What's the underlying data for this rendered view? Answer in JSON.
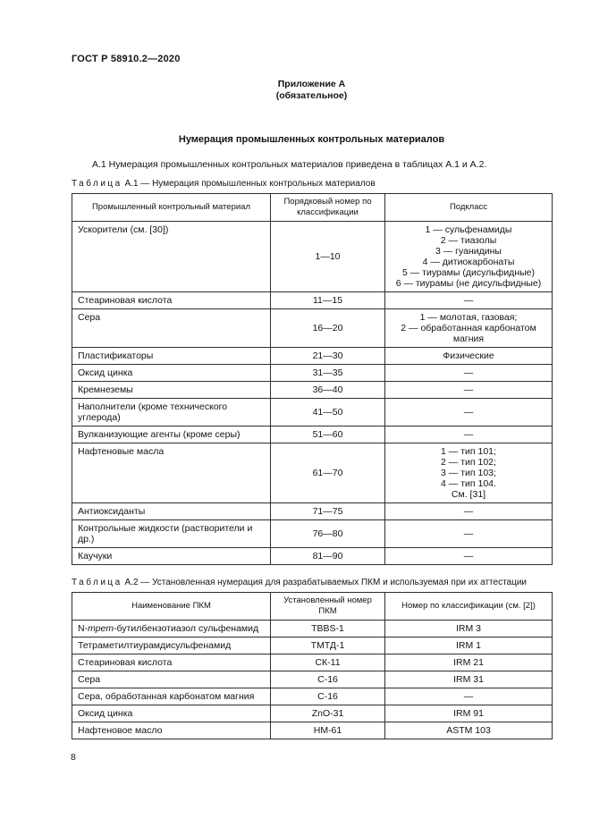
{
  "page": {
    "doc_header": "ГОСТ Р 58910.2—2020",
    "annex_line1": "Приложение А",
    "annex_line2": "(обязательное)",
    "title": "Нумерация промышленных контрольных материалов",
    "paragraph": "А.1 Нумерация промышленных контрольных материалов приведена в таблицах А.1 и А.2.",
    "page_number": "8"
  },
  "table_a1": {
    "caption": {
      "word": "Таблица",
      "num": "А.1",
      "separator": "—",
      "text": "Нумерация промышленных контрольных материалов"
    },
    "headers": [
      "Промышленный контрольный материал",
      "Порядковый номер по классификации",
      "Подкласс"
    ],
    "rows": [
      {
        "col1": "Ускорители (см. [30])",
        "col2": "1—10",
        "col3": [
          "1 — сульфенамиды",
          "2 — тиазолы",
          "3 — гуанидины",
          "4 — дитиокарбонаты",
          "5 — тиурамы (дисульфидные)",
          "6 — тиурамы (не дисульфидные)"
        ]
      },
      {
        "col1": "Стеариновая кислота",
        "col2": "11—15",
        "col3": "—"
      },
      {
        "col1": "Сера",
        "col2": "16—20",
        "col3": [
          "1 — молотая, газовая;",
          "2 — обработанная карбонатом",
          "магния"
        ]
      },
      {
        "col1": "Пластификаторы",
        "col2": "21—30",
        "col3": "Физические"
      },
      {
        "col1": "Оксид цинка",
        "col2": "31—35",
        "col3": "—"
      },
      {
        "col1": "Кремнеземы",
        "col2": "36—40",
        "col3": "—"
      },
      {
        "col1": "Наполнители (кроме технического углерода)",
        "col2": "41—50",
        "col3": "—"
      },
      {
        "col1": "Вулканизующие агенты (кроме серы)",
        "col2": "51—60",
        "col3": "—"
      },
      {
        "col1": "Нафтеновые масла",
        "col2": "61—70",
        "col3": [
          "1 — тип 101;",
          "2 — тип 102;",
          "3 — тип 103;",
          "4 — тип 104.",
          "См. [31]"
        ]
      },
      {
        "col1": "Антиоксиданты",
        "col2": "71—75",
        "col3": "—"
      },
      {
        "col1": "Контрольные жидкости (растворители и др.)",
        "col2": "76—80",
        "col3": "—"
      },
      {
        "col1": "Каучуки",
        "col2": "81—90",
        "col3": "—"
      }
    ]
  },
  "table_a2": {
    "caption": {
      "word": "Таблица",
      "num": "А.2",
      "separator": "—",
      "text": "Установленная нумерация для разрабатываемых ПКМ и используемая при их аттестации"
    },
    "headers": [
      "Наименование ПКМ",
      "Установленный номер ПКМ",
      "Номер по классификации (см. [2])"
    ],
    "rows": [
      {
        "col1": "N-трет-бутилбензотиазол сульфенамид",
        "italic_part": "трет",
        "col2": "TBBS-1",
        "col3": "IRM 3"
      },
      {
        "col1": "Тетраметилтиурамдисульфенамид",
        "col2": "ТМТД-1",
        "col3": "IRM 1"
      },
      {
        "col1": "Стеариновая кислота",
        "col2": "СК-11",
        "col3": "IRM 21"
      },
      {
        "col1": "Сера",
        "col2": "С-16",
        "col3": "IRM 31"
      },
      {
        "col1": "Сера, обработанная карбонатом магния",
        "col2": "С-16",
        "col3": "—"
      },
      {
        "col1": "Оксид цинка",
        "col2": "ZnO-31",
        "col3": "IRM 91"
      },
      {
        "col1": "Нафтеновое масло",
        "col2": "НМ-61",
        "col3": "ASTM 103"
      }
    ]
  }
}
